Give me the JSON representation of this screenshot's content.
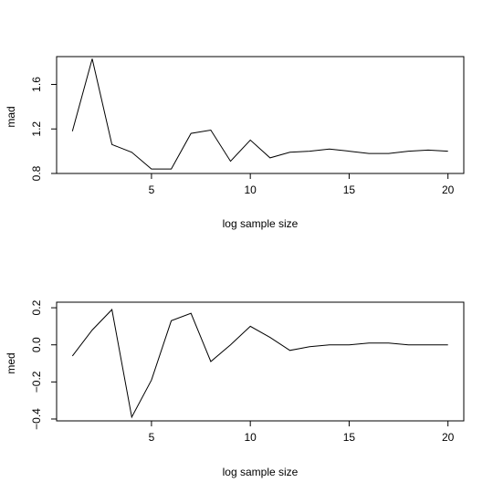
{
  "chart_data": [
    {
      "type": "line",
      "xlabel": "log sample size",
      "ylabel": "mad",
      "xlim": [
        0.2,
        20.8
      ],
      "ylim": [
        0.8,
        1.85
      ],
      "xticks": [
        5,
        10,
        15,
        20
      ],
      "yticks": [
        0.8,
        1.2,
        1.6
      ],
      "xtick_labels": [
        "5",
        "10",
        "15",
        "20"
      ],
      "ytick_labels": [
        "0.8",
        "1.2",
        "1.6"
      ],
      "grid": false,
      "x": [
        1,
        2,
        3,
        4,
        5,
        6,
        7,
        8,
        9,
        10,
        11,
        12,
        13,
        14,
        15,
        16,
        17,
        18,
        19,
        20
      ],
      "y": [
        1.18,
        1.83,
        1.06,
        0.99,
        0.84,
        0.84,
        1.16,
        1.19,
        0.91,
        1.1,
        0.94,
        0.99,
        1.0,
        1.02,
        1.0,
        0.98,
        0.98,
        1.0,
        1.01,
        1.0
      ]
    },
    {
      "type": "line",
      "xlabel": "log sample size",
      "ylabel": "med",
      "xlim": [
        0.2,
        20.8
      ],
      "ylim": [
        -0.41,
        0.23
      ],
      "xticks": [
        5,
        10,
        15,
        20
      ],
      "yticks": [
        -0.4,
        -0.2,
        0.0,
        0.2
      ],
      "xtick_labels": [
        "5",
        "10",
        "15",
        "20"
      ],
      "ytick_labels": [
        "−0.4",
        "−0.2",
        "0.0",
        "0.2"
      ],
      "grid": false,
      "x": [
        1,
        2,
        3,
        4,
        5,
        6,
        7,
        8,
        9,
        10,
        11,
        12,
        13,
        14,
        15,
        16,
        17,
        18,
        19,
        20
      ],
      "y": [
        -0.06,
        0.08,
        0.19,
        -0.39,
        -0.19,
        0.13,
        0.17,
        -0.09,
        0.0,
        0.1,
        0.04,
        -0.03,
        -0.01,
        0.0,
        0.0,
        0.01,
        0.01,
        0.0,
        0.0,
        0.0
      ]
    }
  ]
}
